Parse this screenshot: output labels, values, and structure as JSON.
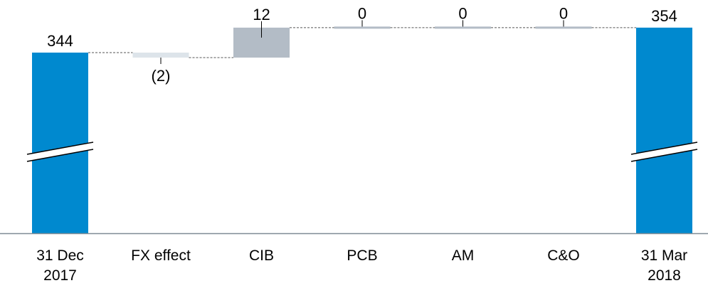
{
  "chart_data": {
    "type": "waterfall",
    "title": "",
    "xlabel": "",
    "ylabel": "",
    "axis_break": true,
    "categories": [
      [
        "31 Dec",
        "2017"
      ],
      [
        "FX effect"
      ],
      [
        "CIB"
      ],
      [
        "PCB"
      ],
      [
        "AM"
      ],
      [
        "C&O"
      ],
      [
        "31 Mar",
        "2018"
      ]
    ],
    "bars": [
      {
        "kind": "total",
        "value": 344,
        "label": "344"
      },
      {
        "kind": "delta",
        "value": -2,
        "label": "(2)"
      },
      {
        "kind": "delta",
        "value": 12,
        "label": "12"
      },
      {
        "kind": "delta",
        "value": 0,
        "label": "0"
      },
      {
        "kind": "delta",
        "value": 0,
        "label": "0"
      },
      {
        "kind": "delta",
        "value": 0,
        "label": "0"
      },
      {
        "kind": "total",
        "value": 354,
        "label": "354"
      }
    ],
    "colors": {
      "total": "#0089cf",
      "positive": "#b3bcc6",
      "negative": "#dde4ea",
      "neutral": "#b3bcc6",
      "connector": "#555555",
      "baseline": "#7f8b96",
      "text": "#000000"
    }
  }
}
